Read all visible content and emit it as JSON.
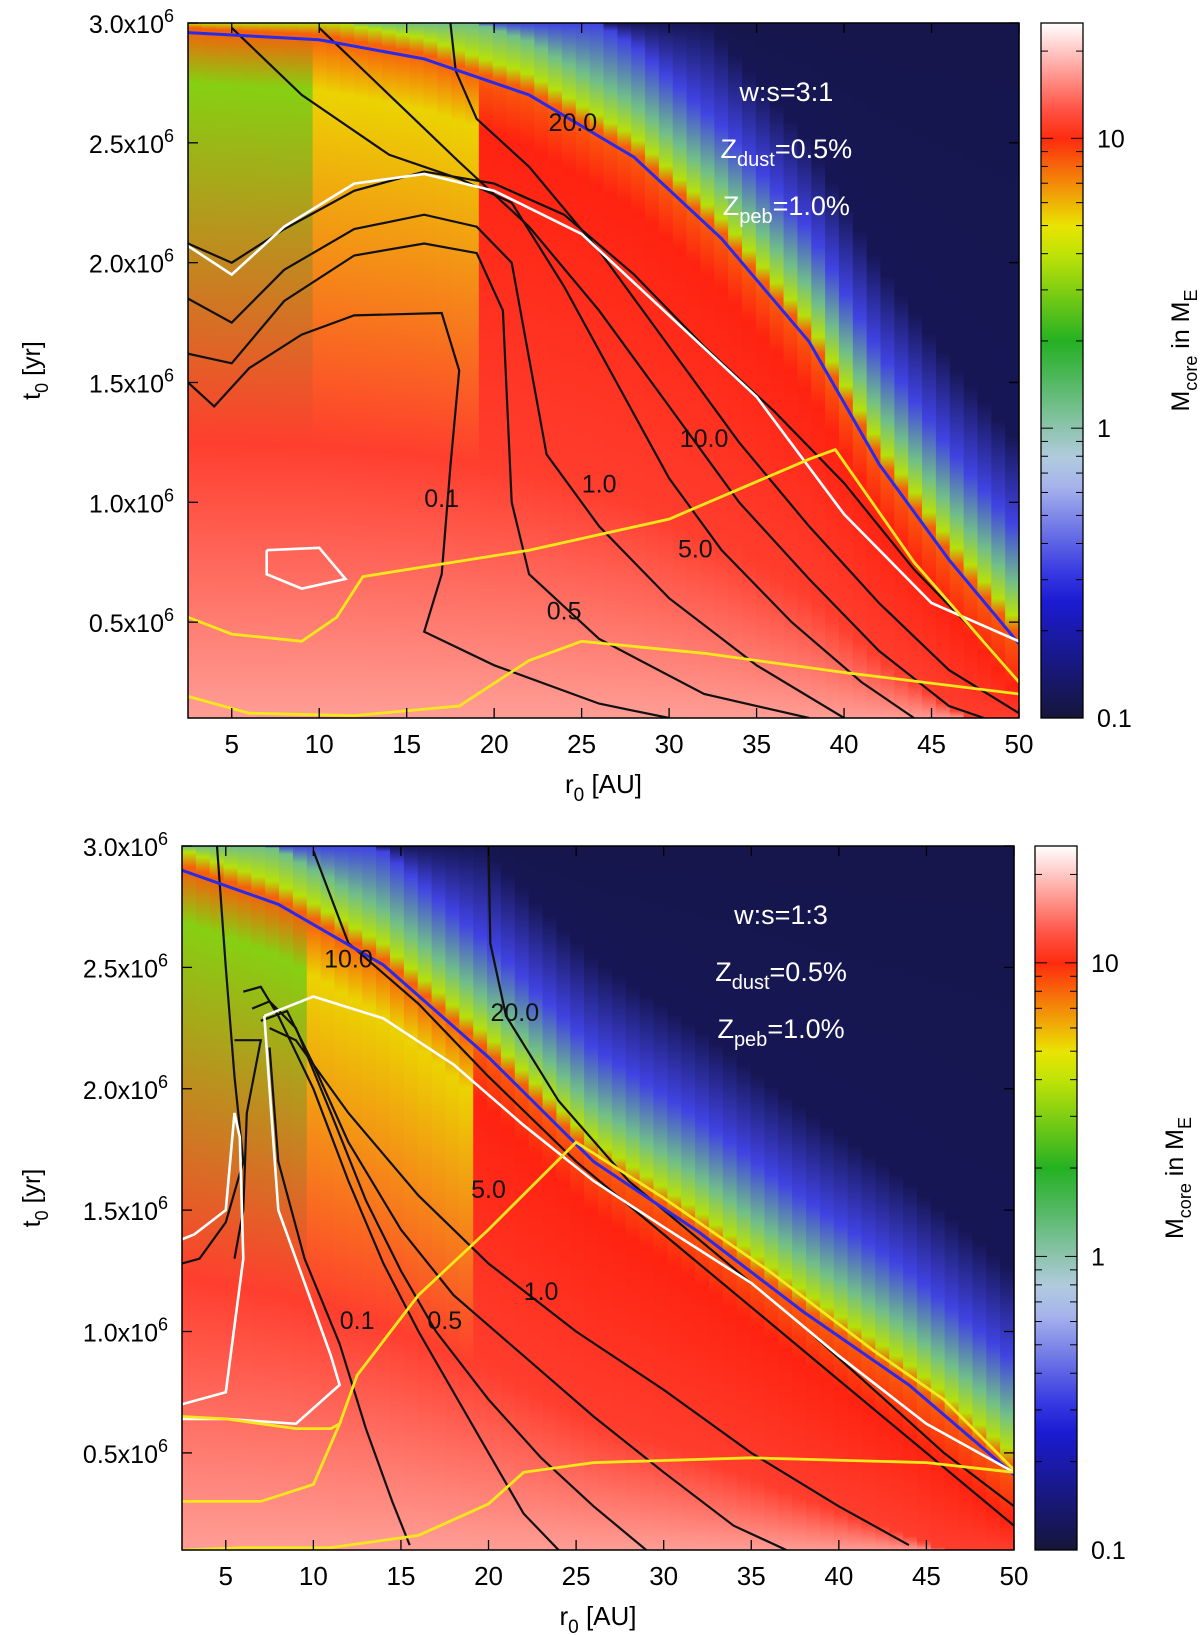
{
  "chart_data": [
    {
      "type": "heatmap",
      "panel": "top",
      "xlabel": "r_0 [AU]",
      "ylabel": "t_0 [yr]",
      "xlim": [
        2.5,
        50
      ],
      "ylim": [
        100000,
        3000000
      ],
      "xticks": [
        5,
        10,
        15,
        20,
        25,
        30,
        35,
        40,
        45,
        50
      ],
      "yticks": [
        {
          "value": 500000,
          "mantissa": "0.5x10",
          "exp": "6"
        },
        {
          "value": 1000000,
          "mantissa": "1.0x10",
          "exp": "6"
        },
        {
          "value": 1500000,
          "mantissa": "1.5x10",
          "exp": "6"
        },
        {
          "value": 2000000,
          "mantissa": "2.0x10",
          "exp": "6"
        },
        {
          "value": 2500000,
          "mantissa": "2.5x10",
          "exp": "6"
        },
        {
          "value": 3000000,
          "mantissa": "3.0x10",
          "exp": "6"
        }
      ],
      "annotations": [
        {
          "base": "w:s=3:1",
          "sub": "",
          "tail": "",
          "color": "#ffffff"
        },
        {
          "base": "Z",
          "sub": "dust",
          "tail": "=0.5%",
          "color": "#ffffff"
        },
        {
          "base": "Z",
          "sub": "peb",
          "tail": "=1.0%",
          "color": "#ffffff"
        }
      ],
      "contour_labels": [
        {
          "text": "20.0",
          "x": 24.5,
          "y": 2550000
        },
        {
          "text": "10.0",
          "x": 32,
          "y": 1230000
        },
        {
          "text": "1.0",
          "x": 26,
          "y": 1040000
        },
        {
          "text": "0.1",
          "x": 17,
          "y": 980000
        },
        {
          "text": "5.0",
          "x": 31.5,
          "y": 770000
        },
        {
          "text": "0.5",
          "x": 24,
          "y": 510000
        }
      ],
      "colorbar": {
        "label_base": "M",
        "label_sub": "core",
        "label_mid": " in M",
        "label_sub2": "E",
        "scale": "log",
        "range": [
          0.1,
          25
        ],
        "ticks": [
          {
            "value": 0.1,
            "label": "0.1"
          },
          {
            "value": 1,
            "label": "1"
          },
          {
            "value": 10,
            "label": "10"
          }
        ],
        "colors": [
          "#15153a",
          "#2020e0",
          "#b8c8ee",
          "#20b020",
          "#e8f000",
          "#ff2010",
          "#ffffff"
        ]
      }
    },
    {
      "type": "heatmap",
      "panel": "bottom",
      "xlabel": "r_0 [AU]",
      "ylabel": "t_0 [yr]",
      "xlim": [
        2.5,
        50
      ],
      "ylim": [
        100000,
        3000000
      ],
      "xticks": [
        5,
        10,
        15,
        20,
        25,
        30,
        35,
        40,
        45,
        50
      ],
      "yticks": [
        {
          "value": 500000,
          "mantissa": "0.5x10",
          "exp": "6"
        },
        {
          "value": 1000000,
          "mantissa": "1.0x10",
          "exp": "6"
        },
        {
          "value": 1500000,
          "mantissa": "1.5x10",
          "exp": "6"
        },
        {
          "value": 2000000,
          "mantissa": "2.0x10",
          "exp": "6"
        },
        {
          "value": 2500000,
          "mantissa": "2.5x10",
          "exp": "6"
        },
        {
          "value": 3000000,
          "mantissa": "3.0x10",
          "exp": "6"
        }
      ],
      "annotations": [
        {
          "base": "w:s=1:3",
          "sub": "",
          "tail": "",
          "color": "#ffffff"
        },
        {
          "base": "Z",
          "sub": "dust",
          "tail": "=0.5%",
          "color": "#ffffff"
        },
        {
          "base": "Z",
          "sub": "peb",
          "tail": "=1.0%",
          "color": "#ffffff"
        }
      ],
      "contour_labels": [
        {
          "text": "10.0",
          "x": 12,
          "y": 2500000
        },
        {
          "text": "20.0",
          "x": 21.5,
          "y": 2280000
        },
        {
          "text": "5.0",
          "x": 20,
          "y": 1550000
        },
        {
          "text": "1.0",
          "x": 23,
          "y": 1130000
        },
        {
          "text": "0.1",
          "x": 12.5,
          "y": 1010000
        },
        {
          "text": "0.5",
          "x": 17.5,
          "y": 1010000
        }
      ],
      "colorbar": {
        "label_base": "M",
        "label_sub": "core",
        "label_mid": " in M",
        "label_sub2": "E",
        "scale": "log",
        "range": [
          0.1,
          25
        ],
        "ticks": [
          {
            "value": 0.1,
            "label": "0.1"
          },
          {
            "value": 1,
            "label": "1"
          },
          {
            "value": 10,
            "label": "10"
          }
        ],
        "colors": [
          "#15153a",
          "#2020e0",
          "#b8c8ee",
          "#20b020",
          "#e8f000",
          "#ff2010",
          "#ffffff"
        ]
      }
    }
  ]
}
